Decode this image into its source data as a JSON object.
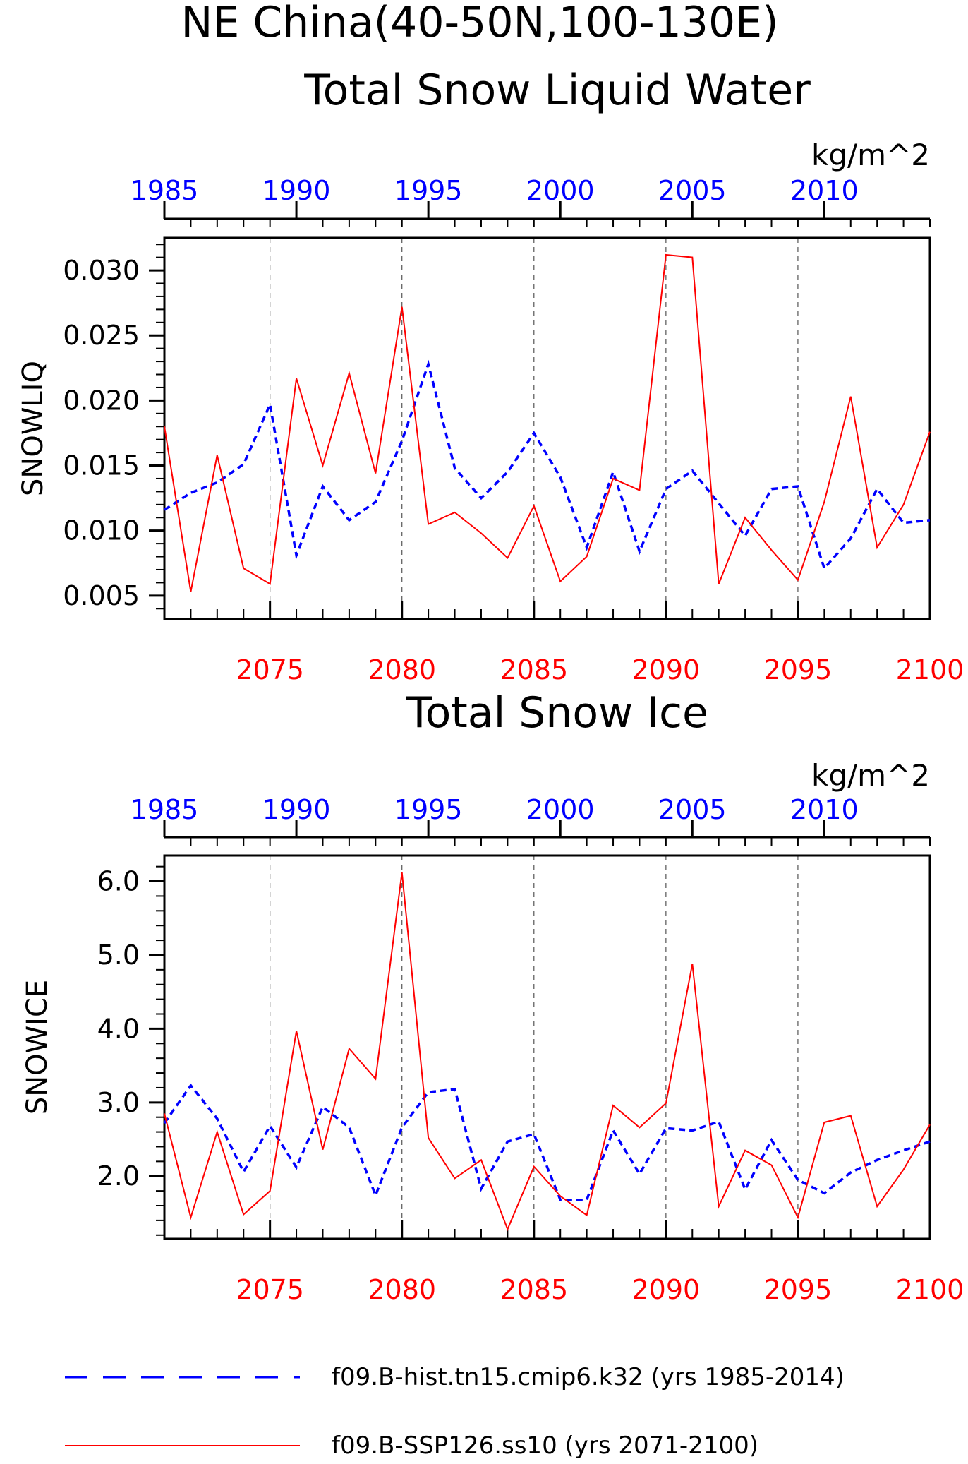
{
  "title_line1": "NE China(40-50N,100-130E)",
  "legend": {
    "hist_label": "f09.B-hist.tn15.cmip6.k32 (yrs 1985-2014)",
    "ssp_label": "f09.B-SSP126.ss10 (yrs 2071-2100)",
    "hist_color": "#0000ff",
    "ssp_color": "#ff0000"
  },
  "chart_data": [
    {
      "type": "line",
      "title": "Total Snow Liquid Water",
      "units": "kg/m^2",
      "ylabel": "SNOWLIQ",
      "ylim": [
        0.0032,
        0.0325
      ],
      "yticks": [
        0.005,
        0.01,
        0.015,
        0.02,
        0.025,
        0.03
      ],
      "ytick_labels": [
        "0.005",
        "0.010",
        "0.015",
        "0.020",
        "0.025",
        "0.030"
      ],
      "bottom_axis": {
        "range": [
          2071,
          2100
        ],
        "ticks": [
          2075,
          2080,
          2085,
          2090,
          2095,
          2100
        ]
      },
      "top_axis": {
        "range": [
          1985,
          2014
        ],
        "ticks": [
          1985,
          1990,
          1995,
          2000,
          2005,
          2010
        ]
      },
      "grid": "vertical dashed at bottom-axis ticks",
      "series": [
        {
          "name": "f09.B-hist.tn15.cmip6.k32 (yrs 1985-2014)",
          "style": "dashed",
          "color": "#0000ff",
          "x": [
            1985,
            1986,
            1987,
            1988,
            1989,
            1990,
            1991,
            1992,
            1993,
            1994,
            1995,
            1996,
            1997,
            1998,
            1999,
            2000,
            2001,
            2002,
            2003,
            2004,
            2005,
            2006,
            2007,
            2008,
            2009,
            2010,
            2011,
            2012,
            2013,
            2014
          ],
          "values": [
            0.0116,
            0.0129,
            0.0137,
            0.0151,
            0.0197,
            0.0081,
            0.0134,
            0.0108,
            0.0122,
            0.0169,
            0.0228,
            0.0148,
            0.0125,
            0.0145,
            0.0175,
            0.0141,
            0.0087,
            0.0145,
            0.0084,
            0.0132,
            0.0146,
            0.0121,
            0.0096,
            0.0132,
            0.0134,
            0.0071,
            0.0094,
            0.0132,
            0.0106,
            0.0108
          ]
        },
        {
          "name": "f09.B-SSP126.ss10 (yrs 2071-2100)",
          "style": "solid",
          "color": "#ff0000",
          "x": [
            2071,
            2072,
            2073,
            2074,
            2075,
            2076,
            2077,
            2078,
            2079,
            2080,
            2081,
            2082,
            2083,
            2084,
            2085,
            2086,
            2087,
            2088,
            2089,
            2090,
            2091,
            2092,
            2093,
            2094,
            2095,
            2096,
            2097,
            2098,
            2099,
            2100
          ],
          "values": [
            0.018,
            0.0053,
            0.0158,
            0.0071,
            0.0059,
            0.0217,
            0.015,
            0.0221,
            0.0144,
            0.0272,
            0.0105,
            0.0114,
            0.0098,
            0.0079,
            0.0119,
            0.0061,
            0.008,
            0.014,
            0.0131,
            0.0312,
            0.031,
            0.0059,
            0.011,
            0.0085,
            0.0062,
            0.0122,
            0.0203,
            0.0087,
            0.012,
            0.0176
          ]
        }
      ]
    },
    {
      "type": "line",
      "title": "Total Snow Ice",
      "units": "kg/m^2",
      "ylabel": "SNOWICE",
      "ylim": [
        1.15,
        6.35
      ],
      "yticks": [
        2.0,
        3.0,
        4.0,
        5.0,
        6.0
      ],
      "ytick_labels": [
        "2.0",
        "3.0",
        "4.0",
        "5.0",
        "6.0"
      ],
      "bottom_axis": {
        "range": [
          2071,
          2100
        ],
        "ticks": [
          2075,
          2080,
          2085,
          2090,
          2095,
          2100
        ]
      },
      "top_axis": {
        "range": [
          1985,
          2014
        ],
        "ticks": [
          1985,
          1990,
          1995,
          2000,
          2005,
          2010
        ]
      },
      "grid": "vertical dashed at bottom-axis ticks",
      "series": [
        {
          "name": "f09.B-hist.tn15.cmip6.k32 (yrs 1985-2014)",
          "style": "dashed",
          "color": "#0000ff",
          "x": [
            1985,
            1986,
            1987,
            1988,
            1989,
            1990,
            1991,
            1992,
            1993,
            1994,
            1995,
            1996,
            1997,
            1998,
            1999,
            2000,
            2001,
            2002,
            2003,
            2004,
            2005,
            2006,
            2007,
            2008,
            2009,
            2010,
            2011,
            2012,
            2013,
            2014
          ],
          "values": [
            2.72,
            3.23,
            2.78,
            2.06,
            2.68,
            2.12,
            2.94,
            2.66,
            1.74,
            2.66,
            3.14,
            3.18,
            1.83,
            2.47,
            2.57,
            1.68,
            1.68,
            2.62,
            2.03,
            2.65,
            2.62,
            2.74,
            1.82,
            2.49,
            1.95,
            1.77,
            2.05,
            2.22,
            2.35,
            2.47
          ]
        },
        {
          "name": "f09.B-SSP126.ss10 (yrs 2071-2100)",
          "style": "solid",
          "color": "#ff0000",
          "x": [
            2071,
            2072,
            2073,
            2074,
            2075,
            2076,
            2077,
            2078,
            2079,
            2080,
            2081,
            2082,
            2083,
            2084,
            2085,
            2086,
            2087,
            2088,
            2089,
            2090,
            2091,
            2092,
            2093,
            2094,
            2095,
            2096,
            2097,
            2098,
            2099,
            2100
          ],
          "values": [
            2.85,
            1.44,
            2.6,
            1.48,
            1.8,
            3.97,
            2.36,
            3.73,
            3.32,
            6.12,
            2.52,
            1.97,
            2.22,
            1.28,
            2.13,
            1.73,
            1.47,
            2.96,
            2.66,
            2.99,
            4.88,
            1.59,
            2.35,
            2.15,
            1.44,
            2.73,
            2.82,
            1.59,
            2.09,
            2.7
          ]
        }
      ]
    }
  ]
}
